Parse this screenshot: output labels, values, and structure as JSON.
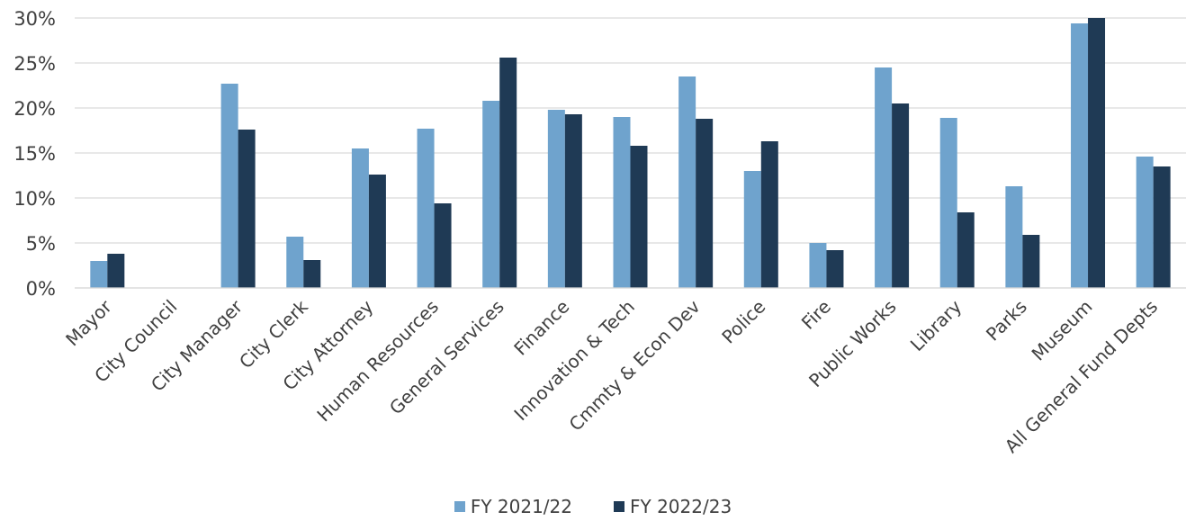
{
  "chart_data": {
    "type": "bar",
    "categories": [
      "Mayor",
      "City Council",
      "City Manager",
      "City Clerk",
      "City Attorney",
      "Human Resources",
      "General Services",
      "Finance",
      "Innovation & Tech",
      "Cmmty & Econ Dev",
      "Police",
      "Fire",
      "Public Works",
      "Library",
      "Parks",
      "Museum",
      "All General Fund Depts"
    ],
    "series": [
      {
        "name": "FY 2021/22",
        "color": "#6fa3cd",
        "values": [
          3.0,
          0,
          22.7,
          5.7,
          15.5,
          17.7,
          20.8,
          19.8,
          19.0,
          23.5,
          13.0,
          5.0,
          24.5,
          18.9,
          11.3,
          29.4,
          14.6
        ]
      },
      {
        "name": "FY 2022/23",
        "color": "#1f3a55",
        "values": [
          3.8,
          0,
          17.6,
          3.1,
          12.6,
          9.4,
          25.6,
          19.3,
          15.8,
          18.8,
          16.3,
          4.2,
          20.5,
          8.4,
          5.9,
          30.0,
          13.5
        ]
      }
    ],
    "ylim": [
      0,
      30
    ],
    "yticks": [
      "0%",
      "5%",
      "10%",
      "15%",
      "20%",
      "25%",
      "30%"
    ],
    "ytick_values": [
      0,
      5,
      10,
      15,
      20,
      25,
      30
    ],
    "grid": true,
    "legend_position": "bottom-center"
  }
}
